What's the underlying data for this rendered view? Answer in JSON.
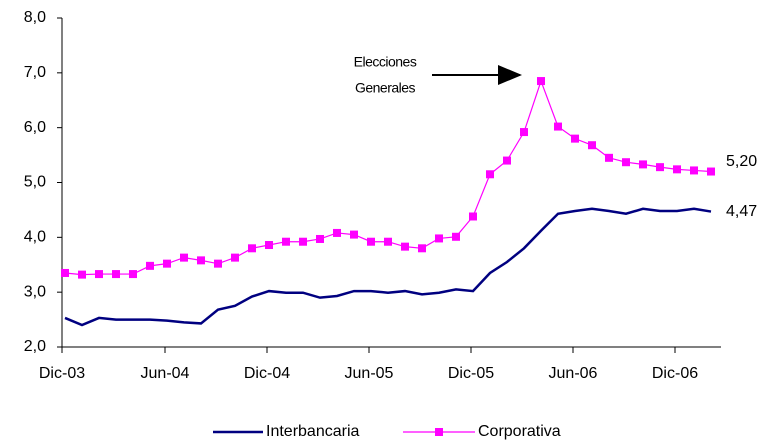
{
  "chart_data": {
    "type": "line",
    "categories": [
      "Dic-03",
      null,
      null,
      null,
      null,
      null,
      "Jun-04",
      null,
      null,
      null,
      null,
      null,
      "Dic-04",
      null,
      null,
      null,
      null,
      null,
      "Jun-05",
      null,
      null,
      null,
      null,
      null,
      "Dic-05",
      null,
      null,
      null,
      null,
      null,
      "Jun-06",
      null,
      null,
      null,
      null,
      null,
      "Dic-06",
      null,
      null
    ],
    "series": [
      {
        "name": "Interbancaria",
        "color": "#000080",
        "marker": "none",
        "values": [
          2.53,
          2.4,
          2.53,
          2.5,
          2.5,
          2.5,
          2.48,
          2.45,
          2.43,
          2.68,
          2.75,
          2.92,
          3.02,
          2.99,
          2.99,
          2.9,
          2.93,
          3.02,
          3.02,
          2.99,
          3.02,
          2.96,
          2.99,
          3.05,
          3.02,
          3.35,
          3.55,
          3.8,
          4.12,
          4.43,
          4.48,
          4.52,
          4.48,
          4.43,
          4.52,
          4.48,
          4.48,
          4.52,
          4.47
        ],
        "value_labels": [
          null,
          null,
          null,
          null,
          null,
          null,
          null,
          null,
          null,
          null,
          null,
          null,
          null,
          null,
          null,
          null,
          null,
          null,
          null,
          null,
          null,
          null,
          null,
          null,
          null,
          null,
          null,
          null,
          null,
          null,
          null,
          null,
          null,
          null,
          null,
          null,
          null,
          null,
          "4,47"
        ]
      },
      {
        "name": "Corporativa",
        "color": "#ff00ff",
        "marker": "square",
        "values": [
          3.35,
          3.32,
          3.33,
          3.33,
          3.33,
          3.48,
          3.52,
          3.63,
          3.58,
          3.52,
          3.63,
          3.8,
          3.86,
          3.92,
          3.92,
          3.97,
          4.08,
          4.05,
          3.92,
          3.92,
          3.83,
          3.8,
          3.98,
          4.01,
          4.38,
          5.15,
          5.4,
          5.92,
          6.85,
          6.02,
          5.8,
          5.68,
          5.45,
          5.37,
          5.33,
          5.28,
          5.24,
          5.22,
          5.2
        ],
        "value_labels": [
          null,
          null,
          null,
          null,
          null,
          null,
          null,
          null,
          null,
          null,
          null,
          null,
          null,
          null,
          null,
          null,
          null,
          null,
          null,
          null,
          null,
          null,
          null,
          null,
          null,
          null,
          null,
          null,
          null,
          null,
          null,
          null,
          null,
          null,
          null,
          null,
          null,
          null,
          "5,20"
        ]
      }
    ],
    "ylim": [
      2,
      8
    ],
    "yticks": [
      {
        "value": 2,
        "label": "2,0"
      },
      {
        "value": 3,
        "label": "3,0"
      },
      {
        "value": 4,
        "label": "4,0"
      },
      {
        "value": 5,
        "label": "5,0"
      },
      {
        "value": 6,
        "label": "6,0"
      },
      {
        "value": 7,
        "label": "7,0"
      },
      {
        "value": 8,
        "label": "8,0"
      }
    ],
    "grid": false,
    "legend": "bottom",
    "annotation": [
      "Elecciones",
      "Generales"
    ]
  }
}
